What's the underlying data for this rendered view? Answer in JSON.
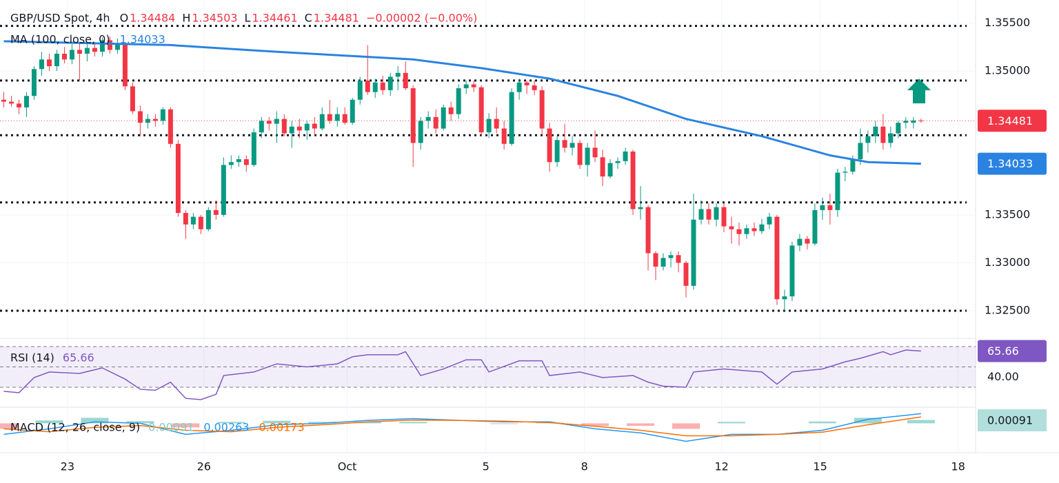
{
  "chart_data": {
    "type": "candlestick",
    "title": "GBP/USD Spot, 4h",
    "ohlc_labels": [
      "O",
      "H",
      "L",
      "C"
    ],
    "change": "−0.00002 (−0.00%)",
    "up_color": "#089981",
    "down_color": "#f23645",
    "xlim": [
      -0.5,
      128.2
    ],
    "xticks": [
      {
        "value": 8.4,
        "label": "23"
      },
      {
        "value": 26.4,
        "label": "26"
      },
      {
        "value": 45.3,
        "label": "Oct"
      },
      {
        "value": 63.6,
        "label": "5"
      },
      {
        "value": 76.6,
        "label": "8"
      },
      {
        "value": 94.7,
        "label": "12"
      },
      {
        "value": 107.7,
        "label": "15"
      },
      {
        "value": 125.9,
        "label": "18"
      }
    ],
    "ylim": [
      1.3222,
      1.3574
    ],
    "yticks": [
      {
        "value": 1.355,
        "label": "1.35500"
      },
      {
        "value": 1.35,
        "label": "1.35000"
      },
      {
        "value": 1.335,
        "label": "1.33500"
      },
      {
        "value": 1.33,
        "label": "1.33000"
      },
      {
        "value": 1.325,
        "label": "1.32500"
      }
    ],
    "grid": true,
    "levels": [
      1.3547,
      1.349,
      1.3433,
      1.3363,
      1.325
    ],
    "candles": [
      [
        1.347,
        1.3478,
        1.3462,
        1.3468
      ],
      [
        1.3468,
        1.3474,
        1.3463,
        1.3466
      ],
      [
        1.3466,
        1.347,
        1.3455,
        1.3462
      ],
      [
        1.3462,
        1.3478,
        1.3452,
        1.3474
      ],
      [
        1.3474,
        1.3505,
        1.347,
        1.3502
      ],
      [
        1.3502,
        1.352,
        1.3495,
        1.3512
      ],
      [
        1.3512,
        1.3518,
        1.35,
        1.3505
      ],
      [
        1.3505,
        1.3522,
        1.35,
        1.3518
      ],
      [
        1.3518,
        1.3525,
        1.3508,
        1.3512
      ],
      [
        1.3512,
        1.3528,
        1.3507,
        1.3522
      ],
      [
        1.3522,
        1.353,
        1.349,
        1.3518
      ],
      [
        1.3518,
        1.3528,
        1.351,
        1.3524
      ],
      [
        1.3524,
        1.353,
        1.3515,
        1.352
      ],
      [
        1.352,
        1.3535,
        1.3515,
        1.3532
      ],
      [
        1.3532,
        1.3536,
        1.3518,
        1.3522
      ],
      [
        1.3522,
        1.3534,
        1.3518,
        1.3528
      ],
      [
        1.3528,
        1.353,
        1.348,
        1.3484
      ],
      [
        1.3484,
        1.3488,
        1.3455,
        1.3458
      ],
      [
        1.3458,
        1.3464,
        1.3432,
        1.3446
      ],
      [
        1.3446,
        1.3455,
        1.344,
        1.345
      ],
      [
        1.345,
        1.3455,
        1.3442,
        1.3448
      ],
      [
        1.3448,
        1.3462,
        1.3444,
        1.346
      ],
      [
        1.346,
        1.3462,
        1.342,
        1.3424
      ],
      [
        1.3424,
        1.3428,
        1.3348,
        1.3352
      ],
      [
        1.3352,
        1.3355,
        1.3325,
        1.334
      ],
      [
        1.334,
        1.3352,
        1.3335,
        1.3348
      ],
      [
        1.3348,
        1.335,
        1.333,
        1.3335
      ],
      [
        1.3335,
        1.3358,
        1.3333,
        1.3355
      ],
      [
        1.3355,
        1.3365,
        1.3345,
        1.335
      ],
      [
        1.335,
        1.341,
        1.3348,
        1.3402
      ],
      [
        1.3402,
        1.3412,
        1.3398,
        1.3405
      ],
      [
        1.3405,
        1.3412,
        1.34,
        1.3408
      ],
      [
        1.3408,
        1.3412,
        1.3395,
        1.3402
      ],
      [
        1.3402,
        1.344,
        1.34,
        1.3436
      ],
      [
        1.3436,
        1.3452,
        1.343,
        1.3448
      ],
      [
        1.3448,
        1.3452,
        1.3438,
        1.3445
      ],
      [
        1.3445,
        1.3458,
        1.3425,
        1.345
      ],
      [
        1.345,
        1.3455,
        1.3432,
        1.3435
      ],
      [
        1.3435,
        1.3448,
        1.342,
        1.3442
      ],
      [
        1.3442,
        1.345,
        1.343,
        1.3438
      ],
      [
        1.3438,
        1.3448,
        1.3428,
        1.3445
      ],
      [
        1.3445,
        1.3452,
        1.3432,
        1.344
      ],
      [
        1.344,
        1.3462,
        1.3438,
        1.3455
      ],
      [
        1.3455,
        1.347,
        1.3445,
        1.3448
      ],
      [
        1.3448,
        1.3462,
        1.3442,
        1.3455
      ],
      [
        1.3455,
        1.3462,
        1.3444,
        1.3446
      ],
      [
        1.3446,
        1.3472,
        1.3444,
        1.347
      ],
      [
        1.347,
        1.3494,
        1.3465,
        1.349
      ],
      [
        1.349,
        1.3527,
        1.3475,
        1.3478
      ],
      [
        1.3478,
        1.3492,
        1.3472,
        1.3488
      ],
      [
        1.3488,
        1.3495,
        1.3475,
        1.348
      ],
      [
        1.348,
        1.3498,
        1.3474,
        1.3494
      ],
      [
        1.3494,
        1.3505,
        1.348,
        1.3498
      ],
      [
        1.3498,
        1.351,
        1.348,
        1.3482
      ],
      [
        1.3482,
        1.3485,
        1.34,
        1.3425
      ],
      [
        1.3425,
        1.3452,
        1.3418,
        1.3448
      ],
      [
        1.3448,
        1.3458,
        1.344,
        1.3452
      ],
      [
        1.3452,
        1.346,
        1.3435,
        1.344
      ],
      [
        1.344,
        1.3465,
        1.3438,
        1.3462
      ],
      [
        1.3462,
        1.3468,
        1.3448,
        1.3455
      ],
      [
        1.3455,
        1.3486,
        1.345,
        1.3482
      ],
      [
        1.3482,
        1.349,
        1.3476,
        1.3486
      ],
      [
        1.3486,
        1.349,
        1.3478,
        1.3483
      ],
      [
        1.3483,
        1.3485,
        1.3432,
        1.3436
      ],
      [
        1.3436,
        1.3456,
        1.343,
        1.345
      ],
      [
        1.345,
        1.3462,
        1.3435,
        1.344
      ],
      [
        1.344,
        1.3448,
        1.3418,
        1.3424
      ],
      [
        1.3424,
        1.3482,
        1.3422,
        1.3478
      ],
      [
        1.3478,
        1.3492,
        1.347,
        1.3488
      ],
      [
        1.3488,
        1.349,
        1.3476,
        1.3485
      ],
      [
        1.3485,
        1.349,
        1.3475,
        1.348
      ],
      [
        1.348,
        1.3484,
        1.3434,
        1.344
      ],
      [
        1.344,
        1.3446,
        1.3395,
        1.3405
      ],
      [
        1.3405,
        1.3432,
        1.34,
        1.3428
      ],
      [
        1.3428,
        1.3445,
        1.3415,
        1.342
      ],
      [
        1.342,
        1.3432,
        1.3412,
        1.3425
      ],
      [
        1.3425,
        1.3428,
        1.3398,
        1.3402
      ],
      [
        1.3402,
        1.3425,
        1.339,
        1.342
      ],
      [
        1.342,
        1.3438,
        1.3405,
        1.341
      ],
      [
        1.341,
        1.3418,
        1.338,
        1.339
      ],
      [
        1.339,
        1.3408,
        1.3388,
        1.3404
      ],
      [
        1.3404,
        1.341,
        1.3398,
        1.3406
      ],
      [
        1.3406,
        1.342,
        1.3402,
        1.3416
      ],
      [
        1.3416,
        1.3418,
        1.335,
        1.3356
      ],
      [
        1.3356,
        1.338,
        1.3345,
        1.3358
      ],
      [
        1.3358,
        1.336,
        1.3292,
        1.331
      ],
      [
        1.331,
        1.3312,
        1.3282,
        1.3296
      ],
      [
        1.3296,
        1.331,
        1.3292,
        1.3305
      ],
      [
        1.3305,
        1.3312,
        1.3295,
        1.3308
      ],
      [
        1.3308,
        1.3312,
        1.329,
        1.33
      ],
      [
        1.33,
        1.3302,
        1.3264,
        1.3276
      ],
      [
        1.3276,
        1.3372,
        1.3272,
        1.3345
      ],
      [
        1.3345,
        1.3365,
        1.334,
        1.3356
      ],
      [
        1.3356,
        1.3362,
        1.334,
        1.3345
      ],
      [
        1.3345,
        1.3362,
        1.3338,
        1.3358
      ],
      [
        1.3358,
        1.3362,
        1.3332,
        1.3338
      ],
      [
        1.3338,
        1.3348,
        1.332,
        1.3335
      ],
      [
        1.3335,
        1.3342,
        1.3318,
        1.333
      ],
      [
        1.333,
        1.334,
        1.3325,
        1.3336
      ],
      [
        1.3336,
        1.3342,
        1.3328,
        1.3333
      ],
      [
        1.3333,
        1.3346,
        1.333,
        1.334
      ],
      [
        1.334,
        1.3352,
        1.3335,
        1.3348
      ],
      [
        1.3348,
        1.335,
        1.3256,
        1.3262
      ],
      [
        1.3262,
        1.3272,
        1.325,
        1.3265
      ],
      [
        1.3265,
        1.3322,
        1.326,
        1.3318
      ],
      [
        1.3318,
        1.333,
        1.3312,
        1.3325
      ],
      [
        1.3325,
        1.3328,
        1.3314,
        1.332
      ],
      [
        1.332,
        1.3362,
        1.3318,
        1.3355
      ],
      [
        1.3355,
        1.3368,
        1.3345,
        1.336
      ],
      [
        1.336,
        1.3372,
        1.334,
        1.3355
      ],
      [
        1.3355,
        1.3398,
        1.3348,
        1.3394
      ],
      [
        1.3394,
        1.34,
        1.3385,
        1.3395
      ],
      [
        1.3395,
        1.3412,
        1.3392,
        1.3408
      ],
      [
        1.3408,
        1.344,
        1.3402,
        1.3425
      ],
      [
        1.3425,
        1.3438,
        1.3415,
        1.3432
      ],
      [
        1.3432,
        1.3448,
        1.3425,
        1.3442
      ],
      [
        1.3442,
        1.3455,
        1.3418,
        1.3425
      ],
      [
        1.3425,
        1.3442,
        1.342,
        1.3435
      ],
      [
        1.3435,
        1.3448,
        1.343,
        1.3446
      ],
      [
        1.3446,
        1.3452,
        1.344,
        1.3448
      ],
      [
        1.3446,
        1.3452,
        1.344,
        1.34484
      ],
      [
        1.34484,
        1.34503,
        1.34461,
        1.34481
      ]
    ],
    "ma": {
      "name": "MA (100, close, 0)",
      "color": "#2a83e0",
      "x": [
        0,
        22,
        36,
        54,
        63,
        72,
        81,
        90,
        100,
        109,
        114,
        121
      ],
      "values": [
        1.3531,
        1.3527,
        1.352,
        1.3512,
        1.3503,
        1.3492,
        1.3474,
        1.345,
        1.3432,
        1.3412,
        1.3405,
        1.34033
      ]
    },
    "rsi": {
      "name": "RSI (14)",
      "color": "#7e57c2",
      "ylim": [
        11,
        77.5
      ],
      "levels": [
        70,
        50,
        30
      ],
      "yticks": [
        {
          "value": 40,
          "label": "40.00"
        }
      ],
      "x": [
        0,
        2,
        4,
        6,
        10,
        13,
        16,
        18,
        20,
        22,
        24,
        26,
        28,
        29,
        33,
        36,
        40,
        44,
        46,
        48,
        52,
        53,
        55,
        58,
        61,
        63,
        64,
        68,
        71,
        72,
        76,
        79,
        83,
        85,
        87,
        90,
        91,
        95,
        100,
        102,
        104,
        108,
        111,
        113,
        116,
        117,
        119,
        121
      ],
      "values": [
        26,
        24.6,
        39.5,
        45,
        43.6,
        49,
        38,
        28,
        27,
        35,
        19,
        17.8,
        23,
        41.5,
        45,
        53,
        50,
        53,
        60,
        62,
        62,
        65,
        41.5,
        48,
        57,
        57,
        45,
        56,
        56,
        41.5,
        45,
        39.5,
        41.5,
        35,
        31,
        30,
        45,
        48,
        45,
        33,
        45,
        48,
        55,
        58.5,
        65,
        62,
        66.6,
        65.66
      ]
    },
    "macd": {
      "name": "MACD (12, 26, close, 9)",
      "ylim": [
        -0.0078,
        0.0042
      ],
      "x": [
        0,
        6,
        12,
        18,
        24,
        30,
        36,
        42,
        48,
        54,
        60,
        66,
        72,
        78,
        84,
        90,
        96,
        102,
        108,
        114,
        121
      ],
      "histogram": {
        "color_up": "#26a69a",
        "color_down": "#ef5350",
        "values": [
          -0.0015,
          0.0008,
          0.0015,
          0.0006,
          -0.0011,
          0.0004,
          0.0007,
          0.0004,
          0.0004,
          0.0004,
          0,
          -0.0002,
          0.0002,
          -0.0007,
          -0.0007,
          -0.0015,
          0.0004,
          0,
          0.0005,
          0.0015,
          0.00091
        ]
      },
      "line": {
        "color": "#2196f3",
        "values": [
          -0.003,
          -0.0015,
          0.0004,
          0,
          -0.003,
          -0.0019,
          -0.0004,
          0,
          0.0008,
          0.0013,
          0.0008,
          0.0004,
          0.0004,
          -0.0015,
          -0.0026,
          -0.0049,
          -0.003,
          -0.003,
          -0.0019,
          0.0011,
          0.00263
        ]
      },
      "signal": {
        "color": "#ff6d00",
        "values": [
          -0.0015,
          -0.0023,
          -0.0011,
          -0.0006,
          -0.0019,
          -0.0023,
          -0.0011,
          -0.0004,
          0.0004,
          0.0009,
          0.0008,
          0.0006,
          0.0002,
          -0.0008,
          -0.0019,
          -0.0034,
          -0.0034,
          -0.003,
          -0.0024,
          -0.0004,
          0.00173
        ]
      }
    }
  }
}
